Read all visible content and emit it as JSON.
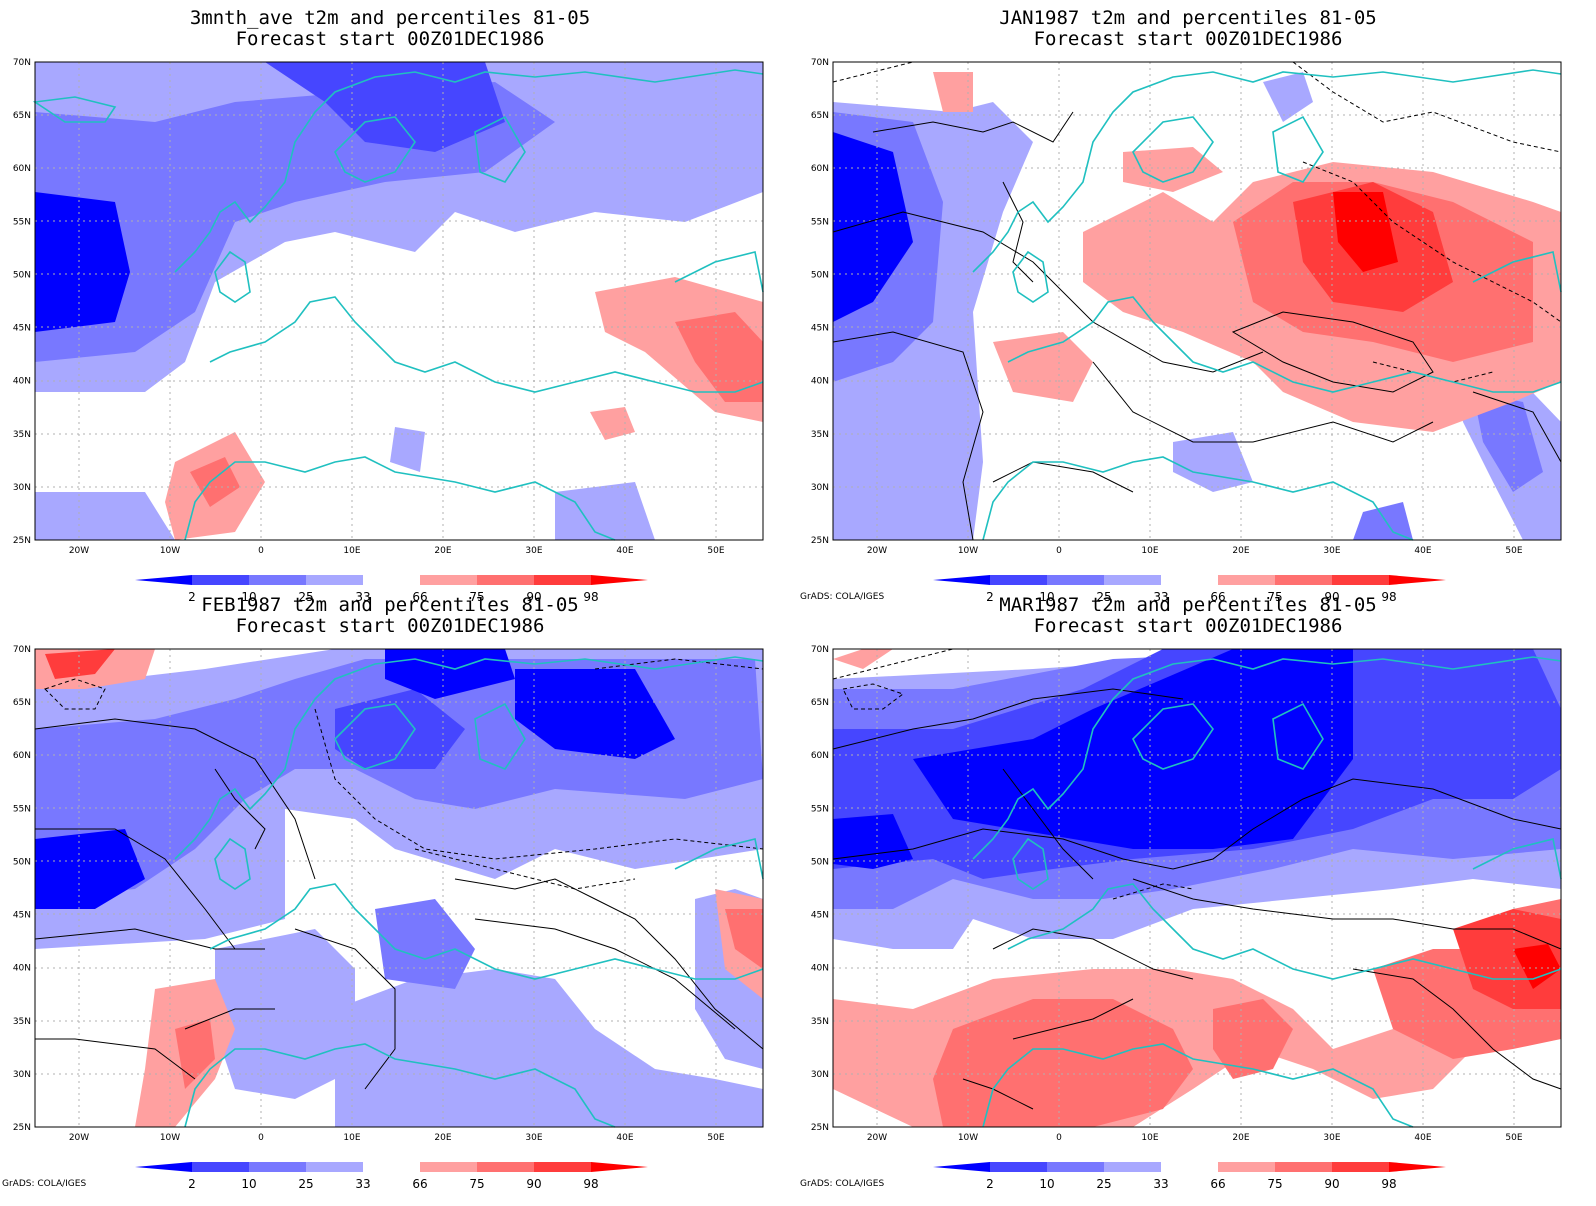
{
  "colors": {
    "very_low": "#0000ff",
    "low": "#4646ff",
    "below": "#7878ff",
    "slightly_below": "#a8a8ff",
    "slightly_above": "#ffa0a0",
    "above": "#ff7070",
    "high": "#ff3c3c",
    "very_high": "#ff0000",
    "coast": "#20c0c0",
    "contour": "#000000",
    "grid": "#b0b0b0"
  },
  "colorbar_ticks": [
    "2",
    "10",
    "25",
    "33",
    "66",
    "75",
    "90",
    "98"
  ],
  "credit": "GrADS: COLA/IGES",
  "lat_labels": [
    "70N",
    "65N",
    "60N",
    "55N",
    "50N",
    "45N",
    "40N",
    "35N",
    "30N",
    "25N"
  ],
  "lon_labels": [
    "20W",
    "10W",
    "0",
    "10E",
    "20E",
    "30E",
    "40E",
    "50E"
  ],
  "panels": [
    {
      "title1": "3mnth_ave t2m and percentiles 81-05",
      "title2": "Forecast start 00Z01DEC1986",
      "show_credit": false
    },
    {
      "title1": "JAN1987 t2m and percentiles 81-05",
      "title2": "Forecast start 00Z01DEC1986",
      "show_credit": true
    },
    {
      "title1": "FEB1987 t2m and percentiles 81-05",
      "title2": "Forecast start 00Z01DEC1986",
      "show_credit": true
    },
    {
      "title1": "MAR1987 t2m and percentiles 81-05",
      "title2": "Forecast start 00Z01DEC1986",
      "show_credit": true
    }
  ]
}
